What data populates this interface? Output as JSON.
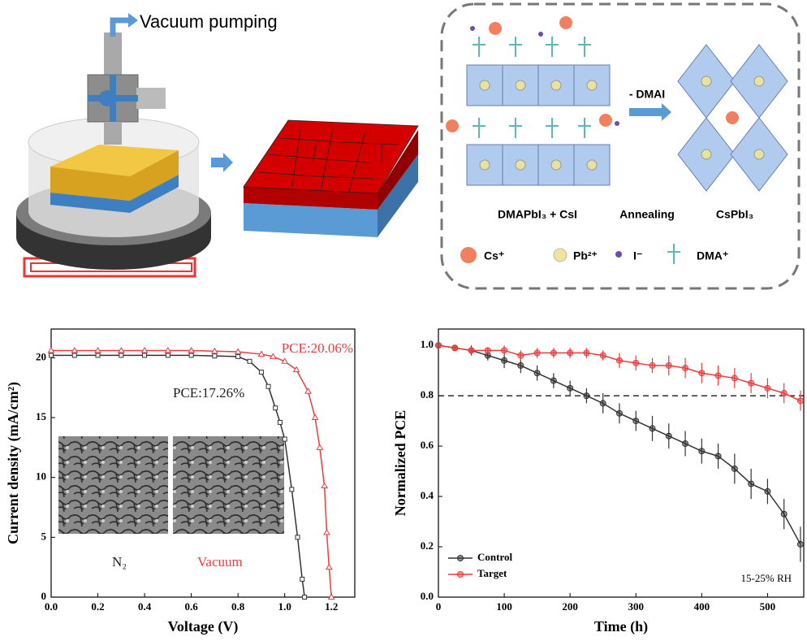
{
  "diagram": {
    "pump_label": "Vacuum pumping",
    "step_label": "- DMAI",
    "left_label": "DMAPbI₃ + CsI",
    "middle_label": "Annealing",
    "right_label": "CsPbI₃",
    "legend": [
      "Cs⁺",
      "Pb²⁺",
      "I⁻",
      "DMA⁺"
    ]
  },
  "chart_data": [
    {
      "type": "line",
      "x_label": "Voltage (V)",
      "y_label": "Current density (mA/cm²)",
      "xlim": [
        0,
        1.3
      ],
      "xticks": [
        {
          "value": 0,
          "label": "0.0"
        },
        0.2,
        0.4,
        0.6,
        0.8,
        {
          "value": 1,
          "label": "1.0"
        },
        1.2
      ],
      "ylim": [
        0,
        22.4
      ],
      "yticks": [
        0,
        5,
        10,
        15,
        20
      ],
      "annotations": [
        {
          "text": "PCE:20.06%",
          "color": "#ee3b3b"
        },
        {
          "text": "PCE:17.26%",
          "color": "#222222"
        },
        {
          "text": "N₂",
          "color": "#222222"
        },
        {
          "text": "Vacuum",
          "color": "#ee3b3b"
        }
      ],
      "series": [
        {
          "name": "N₂",
          "color": "#333333",
          "marker": "square",
          "x": [
            0,
            0.1,
            0.2,
            0.3,
            0.4,
            0.5,
            0.6,
            0.7,
            0.8,
            0.85,
            0.9,
            0.93,
            0.96,
            0.98,
            1.0,
            1.03,
            1.055,
            1.075,
            1.085
          ],
          "values": [
            20.2,
            20.2,
            20.2,
            20.2,
            20.2,
            20.2,
            20.2,
            20.15,
            20.1,
            19.7,
            18.8,
            17.6,
            15.8,
            14.6,
            13.2,
            9.0,
            5.0,
            1.5,
            0
          ]
        },
        {
          "name": "Vacuum",
          "color": "#ee3b3b",
          "marker": "triangle",
          "x": [
            0,
            0.1,
            0.2,
            0.3,
            0.4,
            0.5,
            0.6,
            0.7,
            0.8,
            0.9,
            0.95,
            1.0,
            1.05,
            1.1,
            1.13,
            1.15,
            1.17,
            1.18,
            1.19,
            1.2
          ],
          "values": [
            20.6,
            20.6,
            20.6,
            20.6,
            20.6,
            20.6,
            20.6,
            20.55,
            20.5,
            20.3,
            20.1,
            19.7,
            19.0,
            17.2,
            15.0,
            12.5,
            9.3,
            5.4,
            2.5,
            0
          ]
        }
      ]
    },
    {
      "type": "line",
      "x_label": "Time (h)",
      "y_label": "Normalized PCE",
      "legend": "lower left",
      "annotation": "15-25% RH",
      "reference_line": 0.8,
      "xlim": [
        0,
        555
      ],
      "xticks": [
        0,
        100,
        200,
        300,
        400,
        500
      ],
      "ylim": [
        0,
        1.065
      ],
      "yticks": [
        {
          "value": 0,
          "label": "0.0"
        },
        0.2,
        0.4,
        0.6,
        0.8,
        {
          "value": 1,
          "label": "1.0"
        }
      ],
      "x": [
        0,
        25,
        50,
        75,
        100,
        125,
        150,
        175,
        200,
        225,
        250,
        275,
        300,
        325,
        350,
        375,
        400,
        425,
        450,
        475,
        500,
        525,
        550
      ],
      "series": [
        {
          "name": "Control",
          "color": "#333333",
          "values": [
            1.0,
            0.99,
            0.98,
            0.96,
            0.94,
            0.92,
            0.89,
            0.86,
            0.83,
            0.8,
            0.77,
            0.73,
            0.7,
            0.67,
            0.64,
            0.61,
            0.58,
            0.56,
            0.51,
            0.45,
            0.42,
            0.33,
            0.21
          ],
          "errors": [
            0,
            0.01,
            0.02,
            0.02,
            0.03,
            0.03,
            0.03,
            0.03,
            0.03,
            0.03,
            0.04,
            0.04,
            0.04,
            0.05,
            0.05,
            0.05,
            0.05,
            0.05,
            0.06,
            0.06,
            0.05,
            0.06,
            0.07
          ]
        },
        {
          "name": "Target",
          "color": "#ee3b3b",
          "values": [
            1.0,
            0.99,
            0.98,
            0.98,
            0.98,
            0.96,
            0.97,
            0.97,
            0.97,
            0.97,
            0.96,
            0.94,
            0.93,
            0.92,
            0.92,
            0.91,
            0.89,
            0.88,
            0.87,
            0.85,
            0.83,
            0.81,
            0.78
          ],
          "errors": [
            0,
            0.01,
            0.01,
            0.01,
            0.02,
            0.02,
            0.02,
            0.02,
            0.02,
            0.02,
            0.02,
            0.03,
            0.03,
            0.03,
            0.04,
            0.04,
            0.04,
            0.04,
            0.04,
            0.04,
            0.04,
            0.04,
            0.04
          ]
        }
      ]
    }
  ]
}
